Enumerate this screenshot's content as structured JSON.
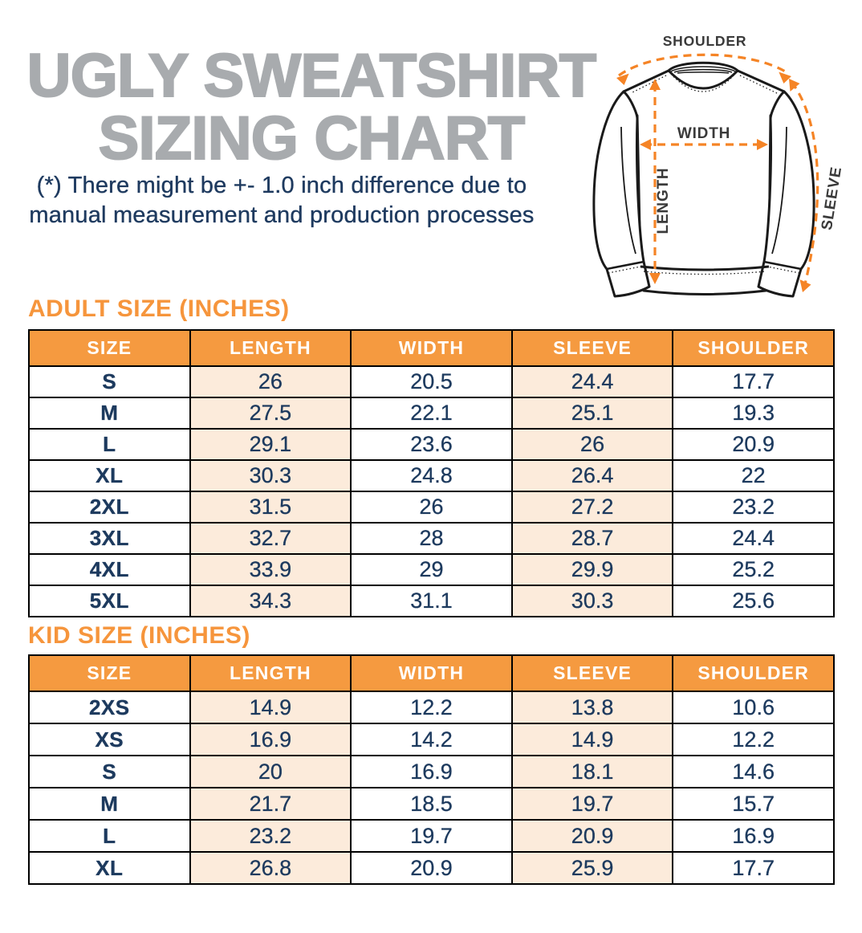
{
  "title": {
    "line1": "UGLY SWEATSHIRT",
    "line2": "SIZING CHART"
  },
  "subtitle": {
    "line1": "(*) There might be +- 1.0 inch difference due to",
    "line2": "manual measurement and production processes"
  },
  "diagram": {
    "labels": {
      "shoulder": "SHOULDER",
      "width": "WIDTH",
      "length": "LENGTH",
      "sleeve": "SLEEVE"
    }
  },
  "adult_table": {
    "heading": "ADULT SIZE (INCHES)",
    "columns": [
      "SIZE",
      "LENGTH",
      "WIDTH",
      "SLEEVE",
      "SHOULDER"
    ],
    "rows": [
      [
        "S",
        "26",
        "20.5",
        "24.4",
        "17.7"
      ],
      [
        "M",
        "27.5",
        "22.1",
        "25.1",
        "19.3"
      ],
      [
        "L",
        "29.1",
        "23.6",
        "26",
        "20.9"
      ],
      [
        "XL",
        "30.3",
        "24.8",
        "26.4",
        "22"
      ],
      [
        "2XL",
        "31.5",
        "26",
        "27.2",
        "23.2"
      ],
      [
        "3XL",
        "32.7",
        "28",
        "28.7",
        "24.4"
      ],
      [
        "4XL",
        "33.9",
        "29",
        "29.9",
        "25.2"
      ],
      [
        "5XL",
        "34.3",
        "31.1",
        "30.3",
        "25.6"
      ]
    ]
  },
  "kid_table": {
    "heading": "KID SIZE (INCHES)",
    "columns": [
      "SIZE",
      "LENGTH",
      "WIDTH",
      "SLEEVE",
      "SHOULDER"
    ],
    "rows": [
      [
        "2XS",
        "14.9",
        "12.2",
        "13.8",
        "10.6"
      ],
      [
        "XS",
        "16.9",
        "14.2",
        "14.9",
        "12.2"
      ],
      [
        "S",
        "20",
        "16.9",
        "18.1",
        "14.6"
      ],
      [
        "M",
        "21.7",
        "18.5",
        "19.7",
        "15.7"
      ],
      [
        "L",
        "23.2",
        "19.7",
        "20.9",
        "16.9"
      ],
      [
        "XL",
        "26.8",
        "20.9",
        "25.9",
        "17.7"
      ]
    ]
  },
  "colors": {
    "accent_orange": "#f6953c",
    "header_orange": "#f59a40",
    "peach_cell": "#fcebdb",
    "navy_text": "#1d3a5e",
    "title_gray": "#a8abae",
    "arrow_orange": "#f58426"
  },
  "chart_data": [
    {
      "type": "table",
      "title": "ADULT SIZE (INCHES)",
      "columns": [
        "SIZE",
        "LENGTH",
        "WIDTH",
        "SLEEVE",
        "SHOULDER"
      ],
      "rows": [
        [
          "S",
          26,
          20.5,
          24.4,
          17.7
        ],
        [
          "M",
          27.5,
          22.1,
          25.1,
          19.3
        ],
        [
          "L",
          29.1,
          23.6,
          26,
          20.9
        ],
        [
          "XL",
          30.3,
          24.8,
          26.4,
          22
        ],
        [
          "2XL",
          31.5,
          26,
          27.2,
          23.2
        ],
        [
          "3XL",
          32.7,
          28,
          28.7,
          24.4
        ],
        [
          "4XL",
          33.9,
          29,
          29.9,
          25.2
        ],
        [
          "5XL",
          34.3,
          31.1,
          30.3,
          25.6
        ]
      ]
    },
    {
      "type": "table",
      "title": "KID SIZE (INCHES)",
      "columns": [
        "SIZE",
        "LENGTH",
        "WIDTH",
        "SLEEVE",
        "SHOULDER"
      ],
      "rows": [
        [
          "2XS",
          14.9,
          12.2,
          13.8,
          10.6
        ],
        [
          "XS",
          16.9,
          14.2,
          14.9,
          12.2
        ],
        [
          "S",
          20,
          16.9,
          18.1,
          14.6
        ],
        [
          "M",
          21.7,
          18.5,
          19.7,
          15.7
        ],
        [
          "L",
          23.2,
          19.7,
          20.9,
          16.9
        ],
        [
          "XL",
          26.8,
          20.9,
          25.9,
          17.7
        ]
      ]
    }
  ]
}
